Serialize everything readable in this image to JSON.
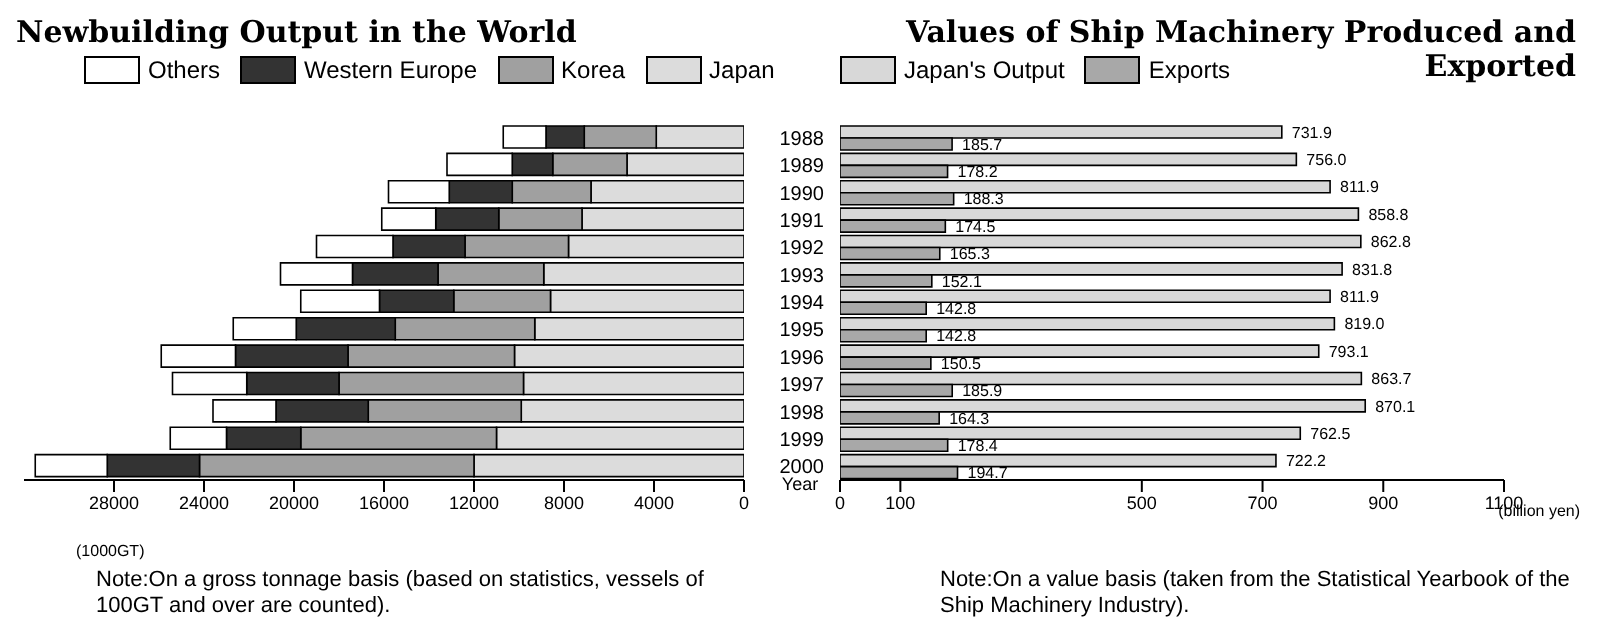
{
  "chart_data": [
    {
      "type": "bar",
      "orientation": "horizontal",
      "stacked": true,
      "title": "Newbuilding Output in the World",
      "xlabel": "(1000GT)",
      "categories": [
        "1988",
        "1989",
        "1990",
        "1991",
        "1992",
        "1993",
        "1994",
        "1995",
        "1996",
        "1997",
        "1998",
        "1999",
        "2000"
      ],
      "series": [
        {
          "name": "Japan",
          "color": "#dcdcdc",
          "values": [
            3900,
            5200,
            6800,
            7200,
            7800,
            8900,
            8600,
            9300,
            10200,
            9800,
            9900,
            11000,
            12000
          ]
        },
        {
          "name": "Korea",
          "color": "#a0a0a0",
          "values": [
            3200,
            3300,
            3500,
            3700,
            4600,
            4700,
            4300,
            6200,
            7400,
            8200,
            6800,
            8700,
            12200
          ]
        },
        {
          "name": "Western Europe",
          "color": "#333333",
          "values": [
            1700,
            1800,
            2800,
            2800,
            3200,
            3800,
            3300,
            4400,
            5000,
            4100,
            4100,
            3300,
            4100
          ]
        },
        {
          "name": "Others",
          "color": "#ffffff",
          "values": [
            1900,
            2900,
            2700,
            2400,
            3400,
            3200,
            3500,
            2800,
            3300,
            3300,
            2800,
            2500,
            3200
          ]
        }
      ],
      "xlim": [
        32000,
        0
      ],
      "xticks": [
        28000,
        24000,
        20000,
        16000,
        12000,
        8000,
        4000,
        0
      ],
      "tick_labels": "x",
      "legend": "top",
      "annotations": [
        "Note:On a gross tonnage basis (based on statistics, vessels of 100GT and over are counted)."
      ]
    },
    {
      "type": "bar",
      "orientation": "horizontal",
      "title": "Values of Ship Machinery Produced and Exported",
      "xlabel": "(billion yen)",
      "ylabel": "Year",
      "categories": [
        "1988",
        "1989",
        "1990",
        "1991",
        "1992",
        "1993",
        "1994",
        "1995",
        "1996",
        "1997",
        "1998",
        "1999",
        "2000"
      ],
      "series": [
        {
          "name": "Japan's Output",
          "color": "#d8d8d8",
          "values": [
            731.9,
            756.0,
            811.9,
            858.8,
            862.8,
            831.8,
            811.9,
            819.0,
            793.1,
            863.7,
            870.1,
            762.5,
            722.2
          ],
          "value_labels": [
            "731.9",
            "756.0",
            "811.9",
            "858.8",
            "862.8",
            "831.8",
            "811.9",
            "819.0",
            "793.1",
            "863.7",
            "870.1",
            "762.5",
            "722.2"
          ]
        },
        {
          "name": "Exports",
          "color": "#a8a8a8",
          "values": [
            185.7,
            178.2,
            188.3,
            174.5,
            165.3,
            152.1,
            142.8,
            142.8,
            150.5,
            185.9,
            164.3,
            178.4,
            194.7
          ],
          "value_labels": [
            "185.7",
            "178.2",
            "188.3",
            "174.5",
            "165.3",
            "152.1",
            "142.8",
            "142.8",
            "150.5",
            "185.9",
            "164.3",
            "178.4",
            "194.7"
          ]
        }
      ],
      "xlim": [
        0,
        1100
      ],
      "xticks": [
        0,
        100,
        500,
        700,
        900,
        1100
      ],
      "legend": "top left",
      "annotations": [
        "Note:On a value basis (taken from the Statistical Yearbook of the Ship Machinery Industry)."
      ]
    }
  ]
}
